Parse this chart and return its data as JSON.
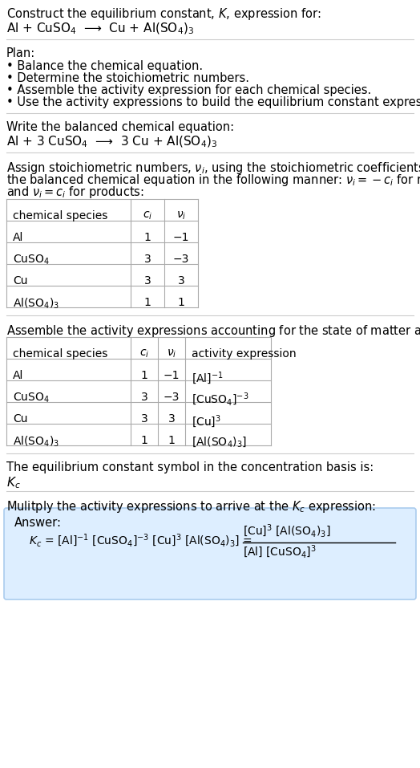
{
  "title_line1": "Construct the equilibrium constant, $K$, expression for:",
  "title_line2": "Al + CuSO$_4$  ⟶  Cu + Al(SO$_4$)$_3$",
  "plan_header": "Plan:",
  "plan_bullets": [
    "• Balance the chemical equation.",
    "• Determine the stoichiometric numbers.",
    "• Assemble the activity expression for each chemical species.",
    "• Use the activity expressions to build the equilibrium constant expression."
  ],
  "balanced_header": "Write the balanced chemical equation:",
  "balanced_eq": "Al + 3 CuSO$_4$  ⟶  3 Cu + Al(SO$_4$)$_3$",
  "stoich_intro": "Assign stoichiometric numbers, $\\nu_i$, using the stoichiometric coefficients, $c_i$, from\nthe balanced chemical equation in the following manner: $\\nu_i = -c_i$ for reactants\nand $\\nu_i = c_i$ for products:",
  "table1_headers": [
    "chemical species",
    "$c_i$",
    "$\\nu_i$"
  ],
  "table1_rows": [
    [
      "Al",
      "1",
      "−1"
    ],
    [
      "CuSO$_4$",
      "3",
      "−3"
    ],
    [
      "Cu",
      "3",
      "3"
    ],
    [
      "Al(SO$_4$)$_3$",
      "1",
      "1"
    ]
  ],
  "activity_intro": "Assemble the activity expressions accounting for the state of matter and $\\nu_i$:",
  "table2_headers": [
    "chemical species",
    "$c_i$",
    "$\\nu_i$",
    "activity expression"
  ],
  "table2_rows": [
    [
      "Al",
      "1",
      "−1",
      "[Al]$^{-1}$"
    ],
    [
      "CuSO$_4$",
      "3",
      "−3",
      "[CuSO$_4$]$^{-3}$"
    ],
    [
      "Cu",
      "3",
      "3",
      "[Cu]$^3$"
    ],
    [
      "Al(SO$_4$)$_3$",
      "1",
      "1",
      "[Al(SO$_4$)$_3$]"
    ]
  ],
  "kc_line1": "The equilibrium constant symbol in the concentration basis is:",
  "kc_symbol": "$K_c$",
  "multiply_line": "Mulitply the activity expressions to arrive at the $K_c$ expression:",
  "answer_label": "Answer:",
  "bg_color": "#ffffff",
  "table_line_color": "#aaaaaa",
  "answer_bg": "#ddeeff",
  "answer_border": "#aaccee",
  "separator_color": "#cccccc",
  "text_color": "#000000"
}
